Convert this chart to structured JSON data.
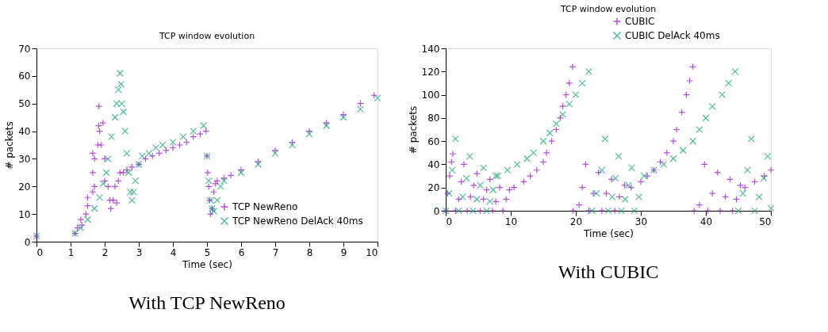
{
  "chart_data": [
    {
      "type": "scatter",
      "title": "TCP window evolution",
      "xlabel": "Time (sec)",
      "ylabel": "# packets",
      "xlim": [
        0,
        10
      ],
      "ylim": [
        0,
        70
      ],
      "xticks": [
        0,
        1,
        2,
        3,
        4,
        5,
        6,
        7,
        8,
        9,
        10
      ],
      "yticks": [
        0,
        10,
        20,
        30,
        40,
        50,
        60,
        70
      ],
      "legend": "bottom right",
      "annotations": [
        "With TCP NewReno"
      ],
      "series": [
        {
          "name": "TCP NewReno",
          "color": "#9400d3",
          "marker": "cross",
          "x": [
            0,
            1.13,
            1.2,
            1.3,
            1.33,
            1.45,
            1.5,
            1.5,
            1.65,
            1.65,
            1.65,
            1.7,
            1.7,
            1.8,
            1.82,
            1.83,
            1.85,
            1.9,
            1.95,
            2.0,
            2.0,
            2.1,
            2.15,
            2.18,
            2.25,
            2.3,
            2.35,
            2.4,
            2.45,
            2.55,
            2.65,
            2.8,
            3.0,
            3.2,
            3.4,
            3.6,
            3.8,
            4.0,
            4.2,
            4.4,
            4.6,
            4.8,
            4.97,
            5.0,
            5.02,
            5.05,
            5.08,
            5.1,
            5.15,
            5.2,
            5.25,
            5.3,
            5.5,
            5.7,
            6.0,
            6.5,
            7.0,
            7.5,
            8.0,
            8.5,
            9.0,
            9.5,
            9.9
          ],
          "values": [
            2,
            3,
            5,
            8,
            6,
            10,
            13,
            16,
            18,
            25,
            32,
            20,
            30,
            35,
            42,
            49,
            40,
            35,
            43,
            30,
            22,
            20,
            15,
            12,
            15,
            20,
            14,
            22,
            25,
            25,
            26,
            27,
            28,
            30,
            31,
            32,
            33,
            34,
            35,
            36,
            38,
            39,
            40,
            31,
            25,
            20,
            15,
            10,
            12,
            18,
            21,
            22,
            23,
            24,
            26,
            29,
            33,
            36,
            40,
            43,
            46,
            50,
            53
          ]
        },
        {
          "name": "TCP NewReno DelAck 40ms",
          "color": "#009e73",
          "marker": "x",
          "x": [
            0,
            1.13,
            1.3,
            1.5,
            1.7,
            1.85,
            1.95,
            2.05,
            2.1,
            2.2,
            2.3,
            2.35,
            2.4,
            2.45,
            2.48,
            2.5,
            2.55,
            2.6,
            2.65,
            2.7,
            2.75,
            2.8,
            2.85,
            2.9,
            3.0,
            3.1,
            3.3,
            3.5,
            3.7,
            4.0,
            4.3,
            4.6,
            4.9,
            5.0,
            5.05,
            5.1,
            5.15,
            5.2,
            5.3,
            5.4,
            5.5,
            6.0,
            6.5,
            7.0,
            7.5,
            8.0,
            8.5,
            9.0,
            9.5,
            10.0
          ],
          "values": [
            2,
            3,
            5,
            8,
            12,
            16,
            21,
            25,
            30,
            38,
            45,
            50,
            55,
            61,
            57,
            50,
            47,
            40,
            32,
            25,
            18,
            15,
            18,
            22,
            28,
            31,
            32,
            34,
            35,
            36,
            38,
            40,
            42,
            31,
            22,
            15,
            12,
            11,
            15,
            20,
            22,
            25,
            28,
            32,
            35,
            39,
            42,
            45,
            48,
            52
          ]
        }
      ]
    },
    {
      "type": "scatter",
      "title": "TCP window evolution",
      "xlabel": "Time (sec)",
      "ylabel": "# packets",
      "xlim": [
        0,
        50
      ],
      "ylim": [
        0,
        140
      ],
      "xticks": [
        0,
        10,
        20,
        30,
        40,
        50
      ],
      "yticks": [
        0,
        20,
        40,
        60,
        80,
        100,
        120,
        140
      ],
      "legend": "top right",
      "annotations": [
        "With CUBIC"
      ],
      "series": [
        {
          "name": "CUBIC",
          "color": "#9400d3",
          "marker": "cross",
          "x": [
            0,
            0.3,
            0.6,
            0.9,
            1.1,
            1.5,
            2.0,
            2.4,
            2.8,
            3.3,
            3.8,
            4.3,
            4.8,
            5.3,
            5.8,
            6.3,
            6.8,
            7.2,
            7.7,
            8.3,
            8.8,
            9.3,
            9.8,
            10.5,
            12,
            13,
            14,
            15,
            15.5,
            16.3,
            17,
            17.6,
            18,
            18.5,
            19,
            19.5,
            19.6,
            20.5,
            21,
            21.5,
            22,
            22.7,
            23.5,
            24,
            24.7,
            25.5,
            26,
            26.7,
            27.5,
            28.5,
            30,
            31,
            32,
            33,
            34,
            35,
            35.5,
            36.3,
            37,
            37.5,
            38,
            38.2,
            39,
            39.8,
            40.3,
            41,
            41.8,
            42.2,
            43,
            43.7,
            44.1,
            44.7,
            45.3,
            46,
            47.5,
            49,
            50
          ],
          "values": [
            0,
            15,
            30,
            42,
            49,
            0,
            10,
            25,
            40,
            0,
            12,
            22,
            32,
            0,
            10,
            18,
            27,
            0,
            8,
            20,
            0,
            10,
            18,
            20,
            25,
            30,
            35,
            42,
            50,
            60,
            70,
            80,
            90,
            100,
            110,
            124,
            0,
            5,
            20,
            40,
            0,
            15,
            33,
            0,
            15,
            27,
            0,
            12,
            22,
            20,
            25,
            30,
            35,
            42,
            50,
            60,
            70,
            85,
            100,
            112,
            124,
            0,
            5,
            40,
            0,
            15,
            33,
            0,
            12,
            27,
            0,
            10,
            22,
            20,
            25,
            30,
            35
          ]
        },
        {
          "name": "CUBIC DelAck 40ms",
          "color": "#009e73",
          "marker": "x",
          "x": [
            0,
            0.5,
            1.0,
            1.5,
            2.0,
            2.6,
            3.2,
            3.7,
            4.2,
            4.8,
            5.3,
            5.8,
            6.3,
            6.8,
            7.3,
            7.7,
            8,
            9.5,
            11,
            12.5,
            13.5,
            15,
            16,
            17,
            18,
            19,
            20,
            21,
            22,
            22.5,
            23.2,
            24,
            24.5,
            25,
            25.6,
            26.1,
            26.6,
            27,
            27.6,
            28.1,
            28.6,
            29,
            29.7,
            30.5,
            32,
            33.5,
            35,
            36.5,
            38,
            39,
            40,
            41,
            42.5,
            43.5,
            44.5,
            45,
            45.7,
            46.4,
            47,
            47.5,
            48.2,
            48.9,
            49.5,
            50
          ],
          "values": [
            0,
            15,
            35,
            62,
            0,
            12,
            28,
            47,
            0,
            10,
            22,
            37,
            0,
            8,
            18,
            30,
            30,
            35,
            40,
            45,
            50,
            60,
            67,
            75,
            83,
            92,
            100,
            110,
            120,
            0,
            15,
            35,
            62,
            0,
            12,
            28,
            47,
            0,
            10,
            22,
            37,
            0,
            12,
            30,
            35,
            40,
            45,
            52,
            60,
            70,
            80,
            90,
            100,
            110,
            120,
            0,
            15,
            35,
            62,
            0,
            12,
            28,
            47,
            2
          ]
        }
      ]
    }
  ]
}
